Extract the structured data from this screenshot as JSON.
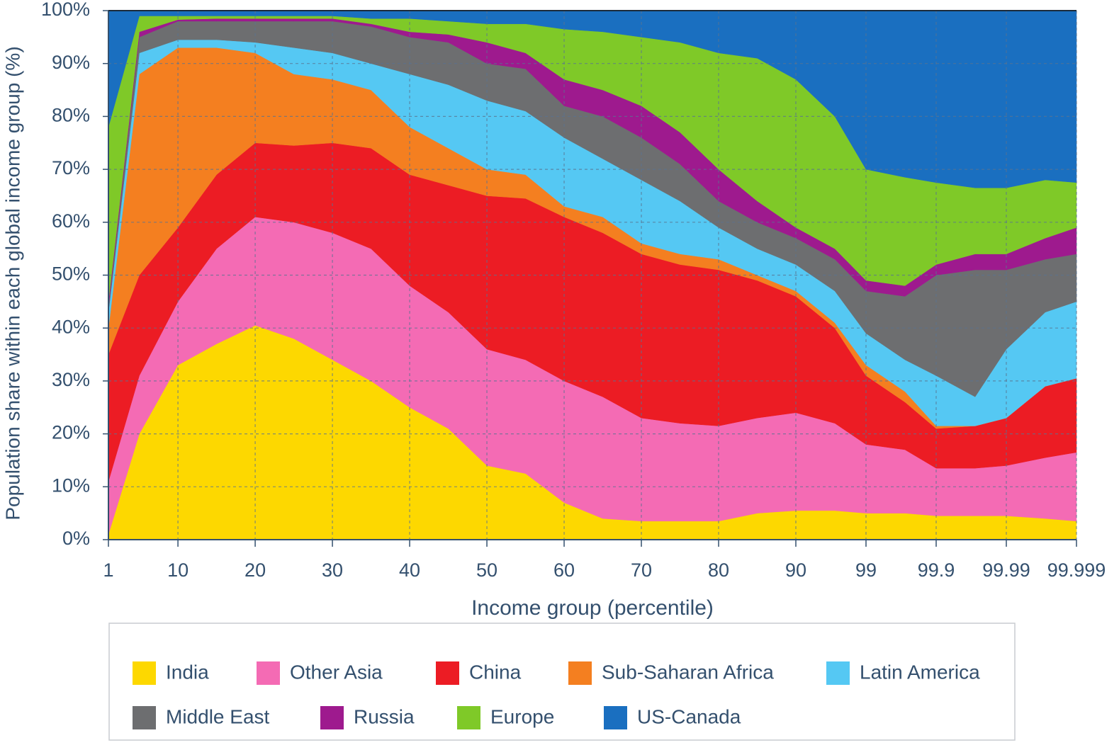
{
  "chart_data": {
    "type": "stacked-area",
    "x_label": "Income group (percentile)",
    "y_label": "Population share within each global income group (%)",
    "x": [
      1,
      5,
      10,
      15,
      20,
      25,
      30,
      35,
      40,
      45,
      50,
      55,
      60,
      65,
      70,
      75,
      80,
      85,
      90,
      95,
      99,
      99.5,
      99.9,
      99.95,
      99.99,
      99.995,
      99.999
    ],
    "xlim": [
      1,
      99.999
    ],
    "xticks": [
      1,
      10,
      20,
      30,
      40,
      50,
      60,
      70,
      80,
      90,
      99,
      99.9,
      99.99,
      99.999
    ],
    "ylim": [
      0,
      100
    ],
    "yticks": [
      {
        "value": 0,
        "label": "0%"
      },
      {
        "value": 10,
        "label": "10%"
      },
      {
        "value": 20,
        "label": "20%"
      },
      {
        "value": 30,
        "label": "30%"
      },
      {
        "value": 40,
        "label": "40%"
      },
      {
        "value": 50,
        "label": "50%"
      },
      {
        "value": 60,
        "label": "60%"
      },
      {
        "value": 70,
        "label": "70%"
      },
      {
        "value": 80,
        "label": "80%"
      },
      {
        "value": 90,
        "label": "90%"
      },
      {
        "value": 100,
        "label": "100%"
      }
    ],
    "grid": true,
    "legend": "bottom",
    "series": [
      {
        "name": "India",
        "color": "#fdd800",
        "values": [
          1,
          20,
          33,
          37,
          40.5,
          38,
          34,
          30,
          25,
          21,
          14,
          12.5,
          7,
          4,
          3.5,
          3.5,
          3.5,
          5,
          5.5,
          5.5,
          5,
          5,
          4.5,
          4.5,
          4.5,
          4,
          3.5
        ]
      },
      {
        "name": "Other Asia",
        "color": "#f46bb4",
        "values": [
          10,
          11,
          12,
          18,
          20.5,
          22,
          24,
          25,
          23,
          22,
          22,
          21.5,
          23,
          23,
          19.5,
          18.5,
          18,
          18,
          18.5,
          16.5,
          13,
          12,
          9,
          9,
          9.5,
          11.5,
          13
        ]
      },
      {
        "name": "China",
        "color": "#ec1c24",
        "values": [
          24,
          19,
          14,
          14,
          14,
          14.5,
          17,
          19,
          21,
          24,
          29,
          30.5,
          31,
          31,
          31,
          30,
          29.5,
          26,
          22,
          18,
          13,
          9,
          7.5,
          8,
          9,
          13.5,
          14
        ]
      },
      {
        "name": "Sub-Saharan Africa",
        "color": "#f47f20",
        "values": [
          5,
          38,
          34,
          24,
          17,
          13.5,
          12,
          11,
          9,
          7,
          5,
          4.5,
          2,
          3,
          2,
          2,
          2,
          1,
          1,
          1,
          2,
          2,
          0.5,
          0,
          0,
          0,
          0
        ]
      },
      {
        "name": "Latin America",
        "color": "#55c8f3",
        "values": [
          3,
          4,
          1.5,
          1.5,
          2,
          5,
          5,
          5,
          10,
          12,
          13,
          12,
          13,
          11,
          12,
          10,
          6,
          5,
          5,
          6,
          6,
          6,
          9.5,
          5.5,
          13,
          14,
          14.5
        ]
      },
      {
        "name": "Middle East",
        "color": "#6d6e70",
        "values": [
          1,
          3,
          3.5,
          3.5,
          4,
          5,
          6,
          7,
          7,
          8,
          7,
          8,
          6,
          8,
          8,
          7,
          5,
          5,
          5,
          6,
          8,
          12,
          19,
          24,
          15,
          10,
          9
        ]
      },
      {
        "name": "Russia",
        "color": "#9e1a8e",
        "values": [
          1,
          1,
          0.3,
          0.5,
          0.5,
          0.5,
          0.5,
          0.5,
          1,
          1.5,
          4,
          3,
          5,
          5,
          6,
          6,
          6,
          4,
          2,
          2,
          2,
          2,
          2,
          3,
          3,
          4,
          5
        ]
      },
      {
        "name": "Europe",
        "color": "#7fc928",
        "values": [
          33,
          3,
          0.7,
          0.5,
          0.5,
          0.5,
          0.5,
          1,
          2.5,
          2.5,
          3.5,
          5.5,
          9.5,
          11,
          13,
          17,
          22,
          27,
          28,
          25,
          21,
          20.5,
          15.5,
          12.5,
          12.5,
          11,
          8.5
        ]
      },
      {
        "name": "US-Canada",
        "color": "#1a6fc0",
        "values": [
          22,
          1,
          1,
          1,
          1,
          1,
          1,
          1.5,
          1.5,
          2,
          2.5,
          2.5,
          3.5,
          4,
          5,
          6,
          8,
          9,
          13,
          20,
          30,
          31.5,
          32.5,
          33.5,
          33.5,
          32,
          32.5
        ]
      }
    ]
  }
}
